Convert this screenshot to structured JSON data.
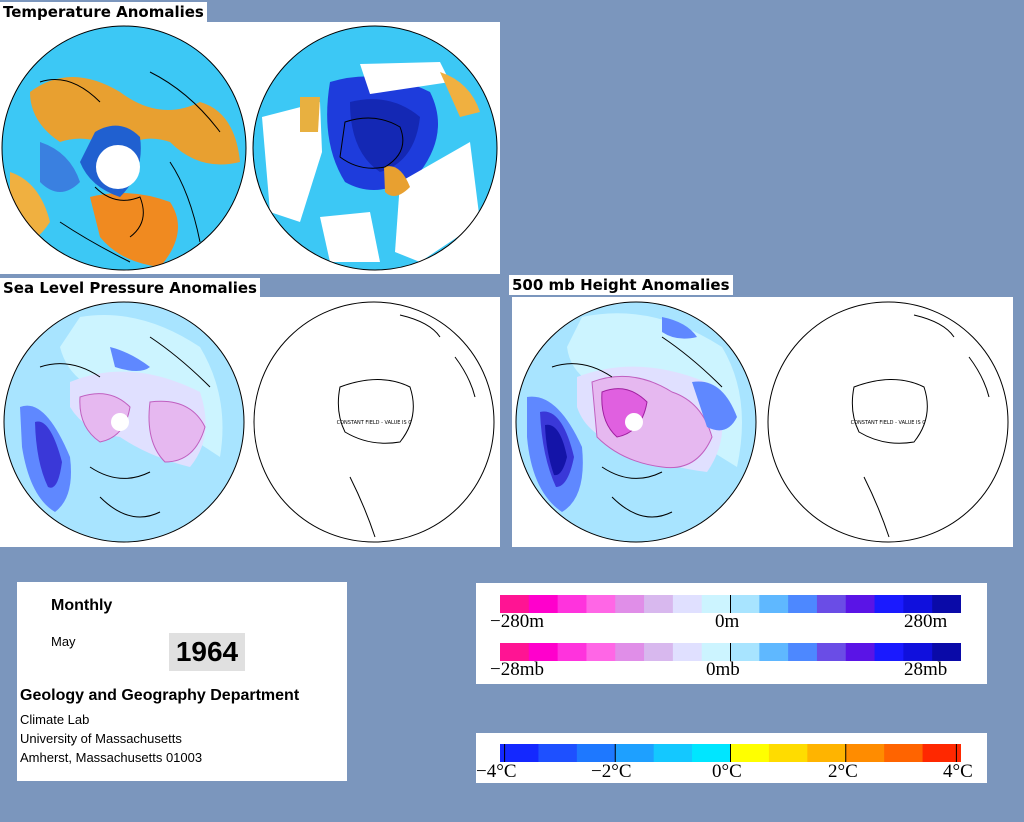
{
  "titles": {
    "temperature": "Temperature Anomalies",
    "slp": "Sea Level Pressure Anomalies",
    "height500": "500 mb Height Anomalies"
  },
  "map_text": {
    "constant_field_slp": "CONSTANT FIELD - VALUE IS 0",
    "constant_field_500": "CONSTANT FIELD - VALUE IS 0"
  },
  "info": {
    "period": "Monthly",
    "month": "May",
    "year": "1964",
    "department": "Geology and Geography Department",
    "lab": "Climate Lab",
    "university": "University of Massachusetts",
    "address": "Amherst, Massachusetts 01003"
  },
  "scales": {
    "height_labels": [
      "−280m",
      "0m",
      "280m"
    ],
    "pressure_labels": [
      "−28mb",
      "0mb",
      "28mb"
    ],
    "temp_labels": [
      "−4°C",
      "−2°C",
      "0°C",
      "2°C",
      "4°C"
    ],
    "anomaly_colors": [
      "#ff1493",
      "#ff00cc",
      "#ff33dd",
      "#ff66e6",
      "#e08ee8",
      "#d8b8ee",
      "#e0e0ff",
      "#ccf4ff",
      "#a8e4ff",
      "#5fb8ff",
      "#4d88ff",
      "#6a4de6",
      "#5a14e6",
      "#1a1aff",
      "#1010dd",
      "#0a0aa8"
    ],
    "temp_colors": [
      "#1428ff",
      "#1e50ff",
      "#1e78ff",
      "#1ea0ff",
      "#14c8ff",
      "#00e6ff",
      "#ffff00",
      "#ffdc00",
      "#ffb400",
      "#ff8c00",
      "#ff6400",
      "#ff2800"
    ]
  }
}
